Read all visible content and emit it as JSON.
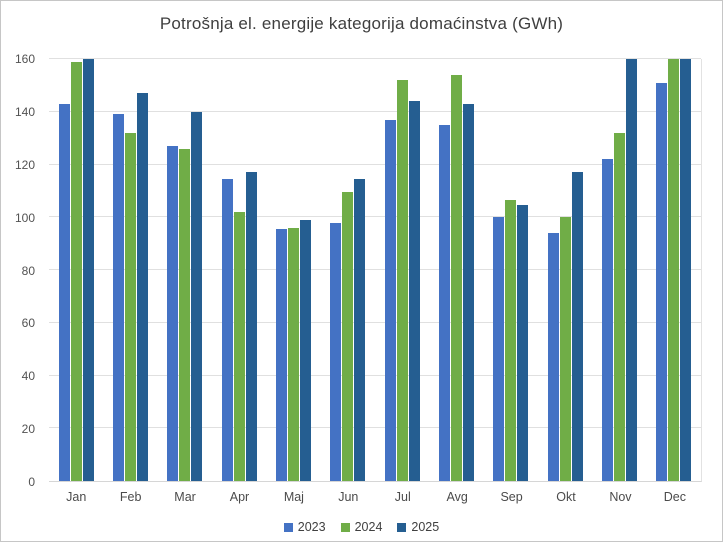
{
  "chart_data": {
    "type": "bar",
    "title": "Potrošnja el. energije kategorija domaćinstva (GWh)",
    "categories": [
      "Jan",
      "Feb",
      "Mar",
      "Apr",
      "Maj",
      "Jun",
      "Jul",
      "Avg",
      "Sep",
      "Okt",
      "Nov",
      "Dec"
    ],
    "series": [
      {
        "name": "2023",
        "color": "#4472C4",
        "values": [
          143,
          139,
          127,
          114.5,
          95.5,
          98,
          137,
          135,
          100,
          94,
          122,
          151
        ]
      },
      {
        "name": "2024",
        "color": "#70AD47",
        "values": [
          159,
          132,
          126,
          102,
          96,
          109.5,
          152,
          154,
          106.5,
          100,
          132,
          160
        ]
      },
      {
        "name": "2025",
        "color": "#255E91",
        "values": [
          160,
          147,
          140,
          117,
          99,
          114.5,
          144,
          143,
          104.5,
          117,
          160,
          160
        ]
      }
    ],
    "xlabel": "",
    "ylabel": "",
    "ylim": [
      0,
      160
    ],
    "yticks": [
      0,
      20,
      40,
      60,
      80,
      100,
      120,
      140,
      160
    ],
    "grid": true,
    "legend_position": "bottom"
  }
}
